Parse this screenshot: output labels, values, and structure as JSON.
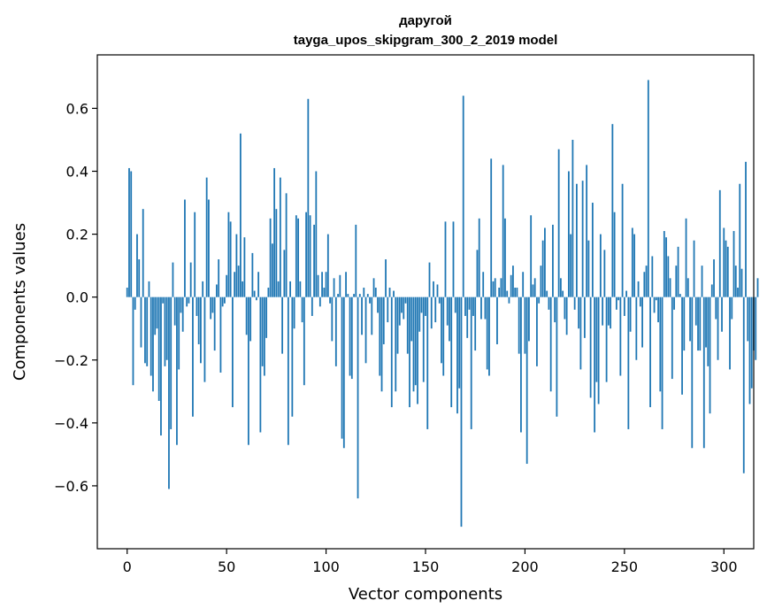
{
  "chart_data": {
    "type": "bar",
    "title": "дарyгой",
    "subtitle": "tayga_upos_skipgram_300_2_2019 model",
    "xlabel": "Vector components",
    "ylabel": "Components values",
    "xlim": [
      -15,
      315
    ],
    "ylim": [
      -0.8,
      0.77
    ],
    "xticks": [
      0,
      50,
      100,
      150,
      200,
      250,
      300
    ],
    "yticks": [
      -0.6,
      -0.4,
      -0.2,
      0.0,
      0.2,
      0.4,
      0.6
    ],
    "ytick_labels": [
      "−0.6",
      "−0.4",
      "−0.2",
      "0.0",
      "0.2",
      "0.4",
      "0.6"
    ],
    "grid": false,
    "bar_color": "#1f77b4",
    "values": [
      0.03,
      0.41,
      0.4,
      -0.28,
      -0.04,
      0.2,
      0.12,
      -0.16,
      0.28,
      -0.21,
      -0.22,
      0.05,
      -0.25,
      -0.3,
      -0.12,
      -0.1,
      -0.33,
      -0.44,
      -0.02,
      -0.22,
      -0.2,
      -0.61,
      -0.42,
      0.11,
      -0.09,
      -0.47,
      -0.23,
      -0.05,
      -0.11,
      0.31,
      -0.03,
      -0.02,
      0.11,
      -0.38,
      0.27,
      -0.06,
      -0.15,
      -0.21,
      0.05,
      -0.27,
      0.38,
      0.31,
      -0.07,
      -0.05,
      -0.17,
      0.04,
      0.12,
      -0.24,
      -0.03,
      -0.02,
      0.07,
      0.27,
      0.24,
      -0.35,
      0.08,
      0.2,
      0.1,
      0.52,
      0.05,
      0.19,
      -0.12,
      -0.47,
      -0.14,
      0.14,
      0.02,
      -0.01,
      0.08,
      -0.43,
      -0.22,
      -0.25,
      -0.13,
      0.03,
      0.25,
      0.17,
      0.41,
      0.28,
      0.05,
      0.38,
      -0.18,
      0.15,
      0.33,
      -0.47,
      0.05,
      -0.38,
      -0.1,
      0.26,
      0.25,
      0.05,
      -0.08,
      -0.28,
      0.27,
      0.63,
      0.26,
      -0.06,
      0.23,
      0.4,
      0.07,
      -0.03,
      0.08,
      0.03,
      0.08,
      0.2,
      -0.02,
      -0.14,
      0.06,
      -0.22,
      0.01,
      0.07,
      -0.45,
      -0.48,
      0.08,
      0.01,
      -0.25,
      -0.26,
      0.01,
      0.23,
      -0.64,
      0.01,
      -0.12,
      0.03,
      -0.21,
      0.01,
      -0.02,
      -0.12,
      0.06,
      0.03,
      -0.05,
      -0.25,
      -0.3,
      -0.15,
      0.12,
      -0.08,
      0.03,
      -0.35,
      0.02,
      -0.3,
      -0.18,
      -0.09,
      -0.05,
      -0.07,
      -0.02,
      -0.18,
      -0.35,
      -0.14,
      -0.3,
      -0.28,
      -0.34,
      -0.11,
      -0.05,
      -0.27,
      -0.06,
      -0.42,
      0.11,
      -0.1,
      0.05,
      -0.08,
      0.04,
      -0.02,
      -0.21,
      -0.25,
      0.24,
      -0.09,
      -0.14,
      -0.35,
      0.24,
      -0.05,
      -0.37,
      -0.29,
      -0.73,
      0.64,
      -0.06,
      -0.13,
      -0.04,
      -0.42,
      -0.06,
      -0.17,
      0.15,
      0.25,
      -0.07,
      0.08,
      -0.07,
      -0.23,
      -0.25,
      0.44,
      0.05,
      0.06,
      -0.15,
      0.03,
      0.06,
      0.42,
      0.25,
      0.02,
      -0.02,
      0.07,
      0.1,
      0.03,
      0.03,
      -0.18,
      -0.43,
      0.08,
      -0.18,
      -0.53,
      -0.14,
      0.26,
      0.04,
      0.06,
      -0.22,
      -0.02,
      0.1,
      0.18,
      0.22,
      0.02,
      -0.04,
      -0.3,
      0.23,
      -0.08,
      -0.38,
      0.47,
      0.06,
      0.02,
      -0.07,
      -0.12,
      0.4,
      0.2,
      0.5,
      -0.04,
      0.36,
      -0.1,
      -0.23,
      0.37,
      -0.13,
      0.42,
      0.18,
      -0.32,
      0.3,
      -0.43,
      -0.27,
      -0.34,
      0.2,
      -0.09,
      0.15,
      -0.27,
      -0.09,
      -0.1,
      0.55,
      0.27,
      -0.04,
      -0.01,
      -0.25,
      0.36,
      -0.06,
      0.02,
      -0.42,
      -0.11,
      0.22,
      0.2,
      -0.2,
      0.05,
      -0.03,
      -0.16,
      0.08,
      0.1,
      0.69,
      -0.35,
      0.13,
      -0.05,
      -0.01,
      -0.08,
      -0.3,
      -0.42,
      0.21,
      0.19,
      0.13,
      0.06,
      -0.26,
      -0.04,
      0.1,
      0.16,
      0.01,
      -0.31,
      -0.17,
      0.25,
      0.06,
      -0.14,
      -0.48,
      0.18,
      -0.09,
      -0.17,
      -0.17,
      0.1,
      -0.48,
      -0.16,
      -0.22,
      -0.37,
      0.04,
      0.12,
      -0.07,
      -0.2,
      0.34,
      -0.11,
      0.22,
      0.18,
      0.16,
      -0.23,
      -0.07,
      0.21,
      0.1,
      0.03,
      0.36,
      0.09,
      -0.56,
      0.43,
      -0.14,
      -0.34,
      -0.29,
      -0.17,
      -0.2,
      0.06
    ]
  }
}
